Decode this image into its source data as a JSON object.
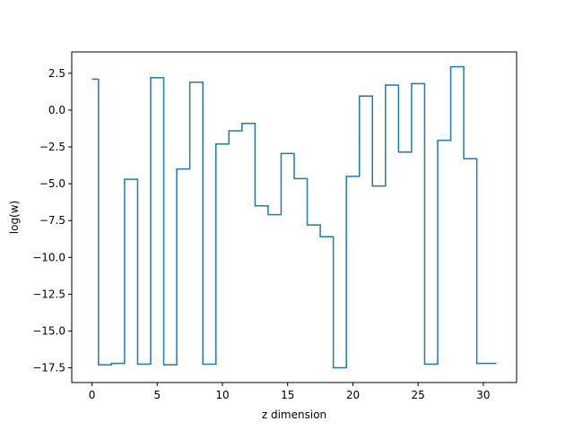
{
  "chart_data": {
    "type": "line",
    "drawstyle": "steps-mid",
    "xlabel": "z dimension",
    "ylabel": "log(w)",
    "xlim": [
      -1.55,
      32.55
    ],
    "ylim": [
      -18.5,
      3.95
    ],
    "grid": false,
    "x_ticks": [
      0,
      5,
      10,
      15,
      20,
      25,
      30
    ],
    "x_tick_labels": [
      "0",
      "5",
      "10",
      "15",
      "20",
      "25",
      "30"
    ],
    "y_ticks": [
      2.5,
      0.0,
      -2.5,
      -5.0,
      -7.5,
      -10.0,
      -12.5,
      -15.0,
      -17.5
    ],
    "y_tick_labels": [
      "2.5",
      "0.0",
      "−2.5",
      "−5.0",
      "−7.5",
      "−10.0",
      "−12.5",
      "−15.0",
      "−17.5"
    ],
    "series": [
      {
        "color": "#1f77b4",
        "x": [
          0,
          1,
          2,
          3,
          4,
          5,
          6,
          7,
          8,
          9,
          10,
          11,
          12,
          13,
          14,
          15,
          16,
          17,
          18,
          19,
          20,
          21,
          22,
          23,
          24,
          25,
          26,
          27,
          28,
          29,
          30,
          31
        ],
        "y": [
          2.1,
          -17.3,
          -17.2,
          -4.7,
          -17.25,
          2.2,
          -17.3,
          -4.0,
          1.9,
          -17.25,
          -2.3,
          -1.4,
          -0.9,
          -6.5,
          -7.1,
          -2.95,
          -4.65,
          -7.8,
          -8.6,
          -17.5,
          -4.5,
          0.95,
          -5.15,
          1.7,
          -2.85,
          1.8,
          -17.25,
          -2.05,
          2.95,
          -3.3,
          -17.2,
          -17.2
        ]
      }
    ]
  }
}
